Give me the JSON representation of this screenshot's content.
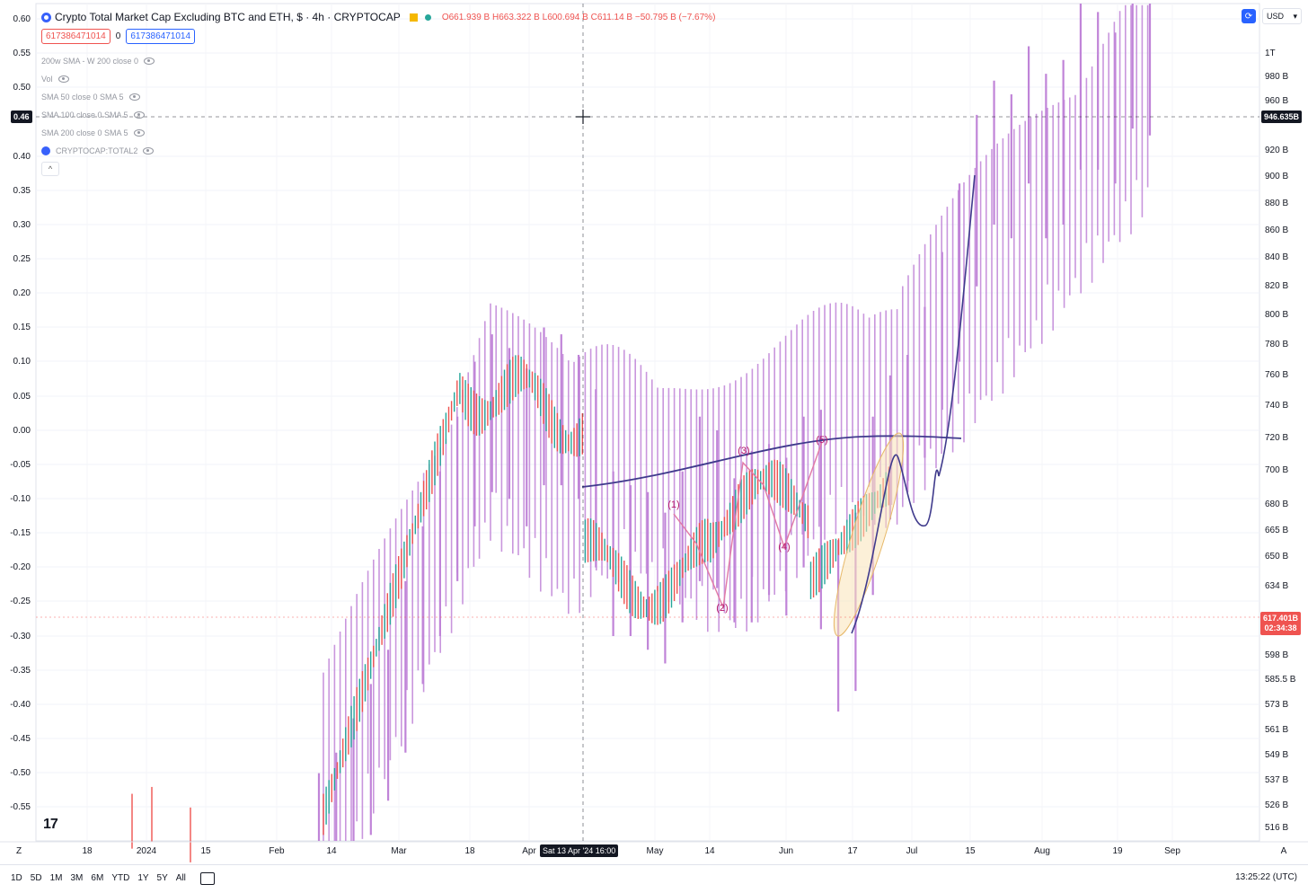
{
  "header": {
    "title": "Crypto Total Market Cap Excluding BTC and ETH, $ · 4h · CRYPTOCAP",
    "ohlc": [
      {
        "k": "O",
        "v": "661.939 B"
      },
      {
        "k": "H",
        "v": "663.322 B"
      },
      {
        "k": "L",
        "v": "600.694 B"
      },
      {
        "k": "C",
        "v": "611.14 B"
      },
      {
        "k": "",
        "v": "−50.795 B (−7.67%)"
      }
    ],
    "input_red": "617386471014",
    "input_zero": "0",
    "input_blue": "617386471014"
  },
  "indicators": [
    "200w SMA - W 200 close 0",
    "Vol",
    "SMA 50 close 0 SMA 5",
    "SMA 100 close 0 SMA 5",
    "SMA 200 close 0 SMA 5",
    "CRYPTOCAP:TOTAL2"
  ],
  "toolbar": {
    "currency": "USD",
    "collapse": "^"
  },
  "crosshair": {
    "left_label": "0.46",
    "right_label": "946.635B",
    "x_label": "Sat 13 Apr '24  16:00"
  },
  "price_tag": {
    "price": "617.401B",
    "countdown": "02:34:38"
  },
  "bottom": {
    "periods": [
      "1D",
      "5D",
      "1M",
      "3M",
      "6M",
      "YTD",
      "1Y",
      "5Y",
      "All"
    ],
    "clock": "13:25:22 (UTC)"
  },
  "wave_labels": [
    "(1)",
    "(2)",
    "(3)",
    "(4)",
    "(5)"
  ],
  "axis_buttons": {
    "left": "Z",
    "right": "A"
  },
  "colors": {
    "bars": "#c084d8",
    "candle_up": "#26a69a",
    "candle_down": "#ef5350",
    "curve": "#3f3a8c",
    "wave": "#e17aa6",
    "accent": "#2962ff"
  },
  "chart_data": {
    "type": "line",
    "left_axis": {
      "ticks": [
        "0.60",
        "0.55",
        "0.50",
        "0.40",
        "0.35",
        "0.30",
        "0.25",
        "0.20",
        "0.15",
        "0.10",
        "0.05",
        "0.00",
        "-0.05",
        "-0.10",
        "-0.15",
        "-0.20",
        "-0.25",
        "-0.30",
        "-0.35",
        "-0.40",
        "-0.45",
        "-0.50",
        "-0.55"
      ]
    },
    "right_axis": {
      "ticks": [
        "1T",
        "980 B",
        "960 B",
        "920 B",
        "900 B",
        "880 B",
        "860 B",
        "840 B",
        "820 B",
        "800 B",
        "780 B",
        "760 B",
        "740 B",
        "720 B",
        "700 B",
        "680 B",
        "665 B",
        "650 B",
        "634 B",
        "598 B",
        "585.5 B",
        "573 B",
        "561 B",
        "549 B",
        "537 B",
        "526 B",
        "516 B"
      ]
    },
    "x_axis": {
      "ticks": [
        "18",
        "2024",
        "15",
        "Feb",
        "14",
        "Mar",
        "18",
        "Apr",
        "May",
        "14",
        "Jun",
        "17",
        "Jul",
        "15",
        "Aug",
        "19",
        "Sep"
      ]
    },
    "series": [
      {
        "values": [
          [
            -0.56,
            -0.56
          ],
          [
            -0.55,
            -0.53
          ],
          [
            -0.5,
            -0.48
          ],
          [
            -0.47,
            -0.43
          ],
          [
            -0.42,
            -0.38
          ],
          [
            -0.35,
            -0.28
          ],
          [
            -0.25,
            -0.2
          ],
          [
            -0.18,
            -0.12
          ],
          [
            -0.1,
            -0.04
          ],
          [
            -0.02,
            0.04
          ],
          [
            0.03,
            0.08
          ],
          [
            0.06,
            0.02
          ],
          [
            -0.02,
            0.03
          ],
          [
            0.04,
            0.09
          ],
          [
            0.08,
            0.04
          ],
          [
            0.02,
            0.05
          ],
          [
            0.0,
            -0.08
          ],
          [
            -0.12,
            -0.18
          ],
          [
            -0.18,
            -0.14
          ],
          [
            -0.15,
            -0.2
          ],
          [
            -0.22,
            -0.18
          ],
          [
            -0.16,
            -0.12
          ],
          [
            -0.1,
            -0.04
          ],
          [
            -0.06,
            -0.11
          ],
          [
            -0.13,
            -0.16
          ],
          [
            -0.16,
            -0.09
          ],
          [
            -0.08,
            -0.12
          ],
          [
            -0.15,
            -0.1
          ],
          [
            -0.08,
            -0.04
          ],
          [
            -0.03,
            -0.17
          ],
          [
            -0.22,
            -0.29
          ],
          [
            -0.26,
            -0.18
          ],
          [
            -0.12,
            -0.04
          ],
          [
            -0.01,
            0.02
          ],
          [
            0.03,
            0.05
          ],
          [
            0.08,
            0.12
          ],
          [
            0.15,
            0.2
          ],
          [
            0.22,
            0.3
          ],
          [
            0.33,
            0.4
          ],
          [
            0.42,
            0.45
          ],
          [
            0.4,
            0.43
          ],
          [
            0.48,
            0.5
          ],
          [
            0.46,
            0.4
          ],
          [
            0.42,
            0.48
          ],
          [
            0.5,
            0.58
          ],
          [
            0.55,
            0.5
          ],
          [
            0.48,
            0.52
          ],
          [
            0.56,
            0.62
          ],
          [
            0.6,
            0.55
          ]
        ]
      }
    ]
  }
}
